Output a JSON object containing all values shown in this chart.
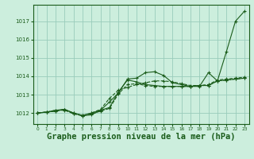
{
  "background_color": "#cceedd",
  "grid_color": "#99ccbb",
  "line_color": "#1a5c1a",
  "xlabel": "Graphe pression niveau de la mer (hPa)",
  "xlabel_fontsize": 7.5,
  "ylim": [
    1011.4,
    1017.9
  ],
  "xlim": [
    -0.5,
    23.5
  ],
  "yticks": [
    1012,
    1013,
    1014,
    1015,
    1016,
    1017
  ],
  "xticks": [
    0,
    1,
    2,
    3,
    4,
    5,
    6,
    7,
    8,
    9,
    10,
    11,
    12,
    13,
    14,
    15,
    16,
    17,
    18,
    19,
    20,
    21,
    22,
    23
  ],
  "series": [
    [
      1012.0,
      1012.05,
      1012.1,
      1012.2,
      1012.0,
      1011.85,
      1011.9,
      1012.15,
      1012.6,
      1013.1,
      1013.85,
      1013.9,
      1014.2,
      1014.25,
      1014.05,
      1013.65,
      1013.55,
      1013.45,
      1013.45,
      1014.2,
      1013.75,
      1015.35,
      1017.0,
      1017.55
    ],
    [
      1012.0,
      1012.05,
      1012.1,
      1012.2,
      1011.95,
      1011.85,
      1012.0,
      1012.2,
      1012.8,
      1013.25,
      1013.4,
      1013.55,
      1013.65,
      1013.75,
      1013.75,
      1013.7,
      1013.6,
      1013.5,
      1013.5,
      1013.55,
      1013.8,
      1013.85,
      1013.9,
      1013.95
    ],
    [
      1012.0,
      1012.05,
      1012.15,
      1012.2,
      1012.0,
      1011.87,
      1012.0,
      1012.15,
      1012.3,
      1013.15,
      1013.8,
      1013.7,
      1013.55,
      1013.5,
      1013.45,
      1013.45,
      1013.45,
      1013.45,
      1013.5,
      1013.5,
      1013.75,
      1013.8,
      1013.85,
      1013.9
    ],
    [
      1012.0,
      1012.05,
      1012.15,
      1012.15,
      1011.97,
      1011.87,
      1011.95,
      1012.1,
      1012.25,
      1013.05,
      1013.55,
      1013.6,
      1013.5,
      1013.45,
      1013.45,
      1013.45,
      1013.45,
      1013.45,
      1013.5,
      1013.5,
      1013.75,
      1013.8,
      1013.85,
      1013.9
    ]
  ]
}
